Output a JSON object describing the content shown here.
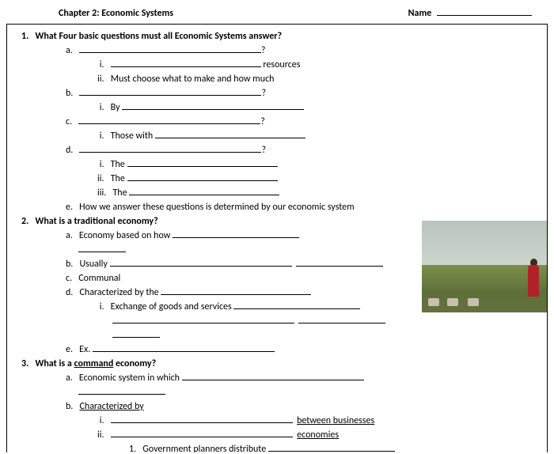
{
  "header": {
    "chapter": "Chapter 2: Economic Systems",
    "name_label": "Name"
  },
  "q1": {
    "num": "1.",
    "text": "What Four basic questions must all Economic Systems answer?",
    "a": "a.",
    "a_i": "i.",
    "a_i_suffix": " resources",
    "a_ii": "ii.",
    "a_ii_text": "Must choose what to make and how much",
    "b": "b.",
    "b_i": "i.",
    "b_i_text": "By ",
    "c": "c.",
    "c_i": "i.",
    "c_i_text": "Those with ",
    "d": "d.",
    "d_i": "i.",
    "d_i_text": "The ",
    "d_ii": "ii.",
    "d_ii_text": "The ",
    "d_iii": "iii.",
    "d_iii_text": "The ",
    "e": "e.",
    "e_text": "How we answer these questions is determined by our economic system"
  },
  "q2": {
    "num": "2.",
    "text": "What is a traditional economy?",
    "a": "a.",
    "a_text": "Economy based on how ",
    "b": "b.",
    "b_text": "Usually ",
    "c": "c.",
    "c_text": "Communal",
    "d": "d.",
    "d_text": "Characterized by the ",
    "d_i": "i.",
    "d_i_text": "Exchange of goods and services ",
    "e": "e.",
    "e_text": "Ex. "
  },
  "q3": {
    "num": "3.",
    "pre": "What is a ",
    "cmd": "command",
    "post": " economy?",
    "a": "a.",
    "a_text": "Economic system in which ",
    "b": "b.",
    "b_text": "Characterized by",
    "b_i": "i.",
    "b_i_suffix": "between businesses",
    "b_ii": "ii.",
    "b_ii_suffix": "economies",
    "b_ii_1": "1.",
    "b_ii_1_text": "Government planners distribute "
  }
}
